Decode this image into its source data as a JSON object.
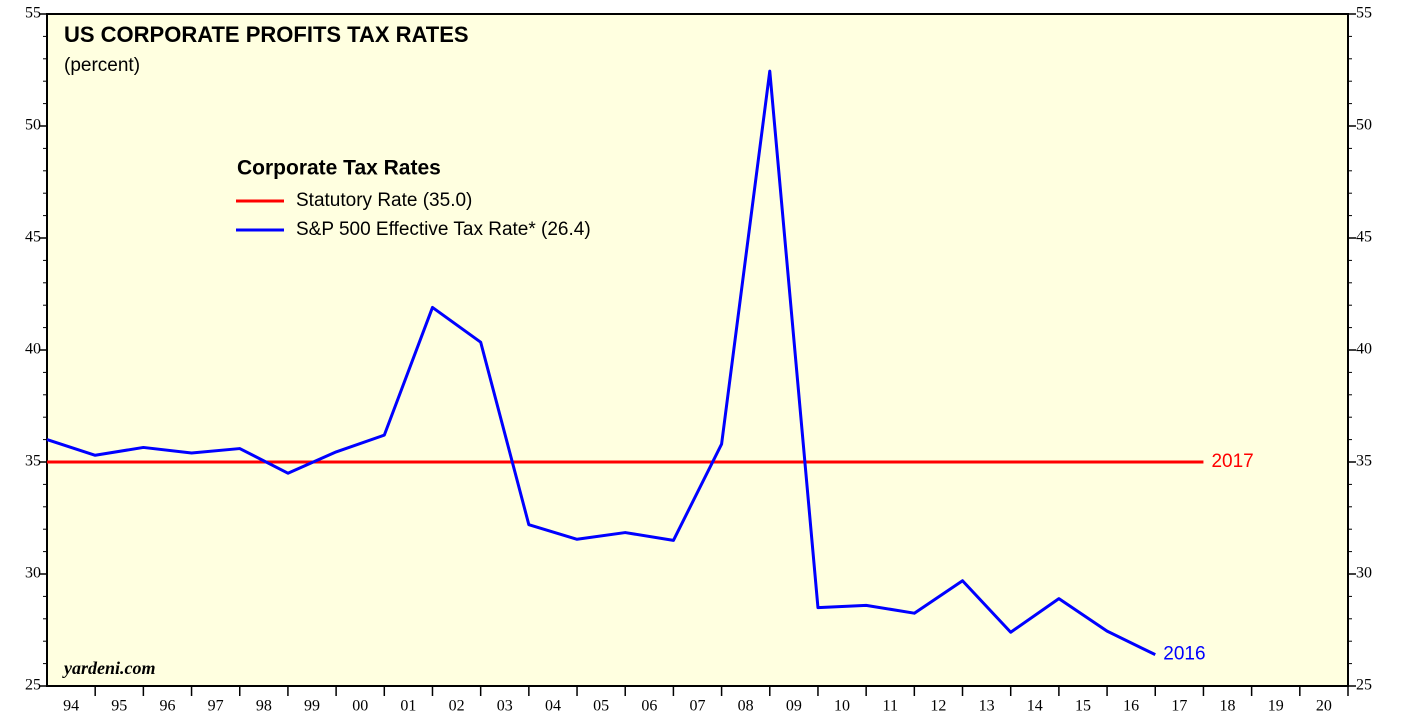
{
  "chart_data": {
    "type": "line",
    "title": "US CORPORATE PROFITS TAX RATES",
    "subtitle": "(percent)",
    "legend_title": "Corporate Tax Rates",
    "source": "yardeni.com",
    "series": [
      {
        "name": "Statutory Rate (35.0)",
        "color": "#ff0000",
        "x": [
          1993,
          2017
        ],
        "values": [
          35,
          35
        ],
        "end_label": "2017"
      },
      {
        "name": "S&P 500 Effective Tax Rate* (26.4)",
        "color": "#0000ff",
        "x": [
          1993,
          1994,
          1995,
          1996,
          1997,
          1998,
          1999,
          2000,
          2001,
          2002,
          2003,
          2004,
          2005,
          2006,
          2007,
          2008,
          2009,
          2010,
          2011,
          2012,
          2013,
          2014,
          2015,
          2016
        ],
        "values": [
          36.0,
          35.3,
          35.65,
          35.4,
          35.6,
          34.5,
          35.45,
          36.2,
          41.9,
          40.35,
          32.2,
          31.55,
          31.85,
          31.5,
          35.8,
          52.45,
          28.5,
          28.6,
          28.25,
          29.7,
          27.4,
          28.9,
          27.45,
          26.4
        ],
        "end_label": "2016"
      }
    ],
    "xlim": [
      1993,
      2020
    ],
    "xticks": [
      {
        "value": 1994,
        "label": "94"
      },
      {
        "value": 1995,
        "label": "95"
      },
      {
        "value": 1996,
        "label": "96"
      },
      {
        "value": 1997,
        "label": "97"
      },
      {
        "value": 1998,
        "label": "98"
      },
      {
        "value": 1999,
        "label": "99"
      },
      {
        "value": 2000,
        "label": "00"
      },
      {
        "value": 2001,
        "label": "01"
      },
      {
        "value": 2002,
        "label": "02"
      },
      {
        "value": 2003,
        "label": "03"
      },
      {
        "value": 2004,
        "label": "04"
      },
      {
        "value": 2005,
        "label": "05"
      },
      {
        "value": 2006,
        "label": "06"
      },
      {
        "value": 2007,
        "label": "07"
      },
      {
        "value": 2008,
        "label": "08"
      },
      {
        "value": 2009,
        "label": "09"
      },
      {
        "value": 2010,
        "label": "10"
      },
      {
        "value": 2011,
        "label": "11"
      },
      {
        "value": 2012,
        "label": "12"
      },
      {
        "value": 2013,
        "label": "13"
      },
      {
        "value": 2014,
        "label": "14"
      },
      {
        "value": 2015,
        "label": "15"
      },
      {
        "value": 2016,
        "label": "16"
      },
      {
        "value": 2017,
        "label": "17"
      },
      {
        "value": 2018,
        "label": "18"
      },
      {
        "value": 2019,
        "label": "19"
      },
      {
        "value": 2020,
        "label": "20"
      }
    ],
    "ylim": [
      25,
      55
    ],
    "yticks": [
      25,
      30,
      35,
      40,
      45,
      50,
      55
    ],
    "background": "#ffffe0"
  }
}
